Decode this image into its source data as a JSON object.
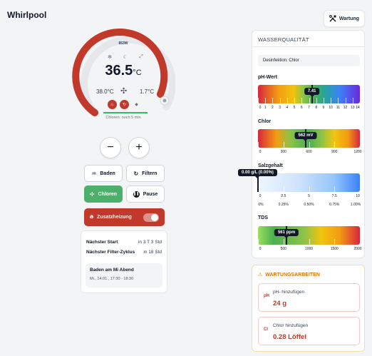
{
  "app": {
    "title": "Whirlpool"
  },
  "header": {
    "wartung_label": "Wartung"
  },
  "gauge": {
    "power": "853W",
    "temp_main": "36.5",
    "temp_unit": "°C",
    "temp_left": "38.0°C",
    "temp_right": "1.7°C",
    "chlor_status": "Chloren: noch 5 min",
    "modes": [
      "snowflake-icon",
      "moon-icon",
      "fullscreen-icon"
    ],
    "colors": {
      "accent": "#c0392b",
      "track": "#e5e7eb",
      "green": "#22c55e"
    }
  },
  "controls": {
    "minus": "−",
    "plus": "+",
    "baden": "Baden",
    "filtern": "Filtern",
    "chloren": "Chloren",
    "pause": "Pause",
    "zusatzheizung": "Zusatzheizung"
  },
  "schedule": {
    "next_start_label": "Nächster Start",
    "next_start_value": "in 3 T 3 Std",
    "next_filter_label": "Nächster Filter-Zyklus",
    "next_filter_value": "in 18 Std",
    "next_bath_title": "Baden am Mi Abend",
    "next_bath_detail": "Mi., 14.01., 17:30 - 18:30"
  },
  "water_quality": {
    "title": "WASSERQUALITÄT",
    "desinfektion": "Desinfektion: Chlor",
    "ph": {
      "label": "pH-Wert",
      "value": 7.41,
      "display": "7.41",
      "min": 0,
      "max": 14,
      "ticks": [
        "0",
        "1",
        "2",
        "3",
        "4",
        "5",
        "6",
        "7",
        "8",
        "9",
        "10",
        "11",
        "12",
        "13",
        "14"
      ]
    },
    "chlor": {
      "label": "Chlor",
      "value": 562,
      "display": "562 mV",
      "min": 0,
      "max": 1200,
      "ticks": [
        {
          "v": 0,
          "t": "0"
        },
        {
          "v": 300,
          "t": "300"
        },
        {
          "v": 600,
          "t": "600"
        },
        {
          "v": 900,
          "t": "900"
        },
        {
          "v": 1200,
          "t": "1200"
        }
      ]
    },
    "salz": {
      "label": "Salzgehalt",
      "value": 0,
      "display": "0.00 g/L (0.00%)",
      "min": 0,
      "max": 10,
      "ticks": [
        {
          "v": 0,
          "t": "0"
        },
        {
          "v": 2.5,
          "t": "2.5"
        },
        {
          "v": 5,
          "t": "5"
        },
        {
          "v": 7.5,
          "t": "7.5"
        },
        {
          "v": 10,
          "t": "10"
        }
      ],
      "ticks2": [
        {
          "v": 0,
          "t": "0%"
        },
        {
          "v": 2.5,
          "t": "0.25%"
        },
        {
          "v": 5,
          "t": "0.50%"
        },
        {
          "v": 7.5,
          "t": "0.75%"
        },
        {
          "v": 10,
          "t": "1.00%"
        }
      ]
    },
    "tds": {
      "label": "TDS",
      "value": 561,
      "display": "561 ppm",
      "min": 0,
      "max": 2000,
      "ticks": [
        {
          "v": 0,
          "t": "0"
        },
        {
          "v": 500,
          "t": "500"
        },
        {
          "v": 1000,
          "t": "1000"
        },
        {
          "v": 1500,
          "t": "1500"
        },
        {
          "v": 2000,
          "t": "2000"
        }
      ]
    }
  },
  "maintenance": {
    "title": "WARTUNGSARBEITEN",
    "items": [
      {
        "icon_text": "pH",
        "label": "pH- hinzufügen",
        "value": "24 g"
      },
      {
        "icon_text": "Cl",
        "label": "Chlor hinzufügen",
        "value": "0.28 Löffel"
      }
    ]
  }
}
